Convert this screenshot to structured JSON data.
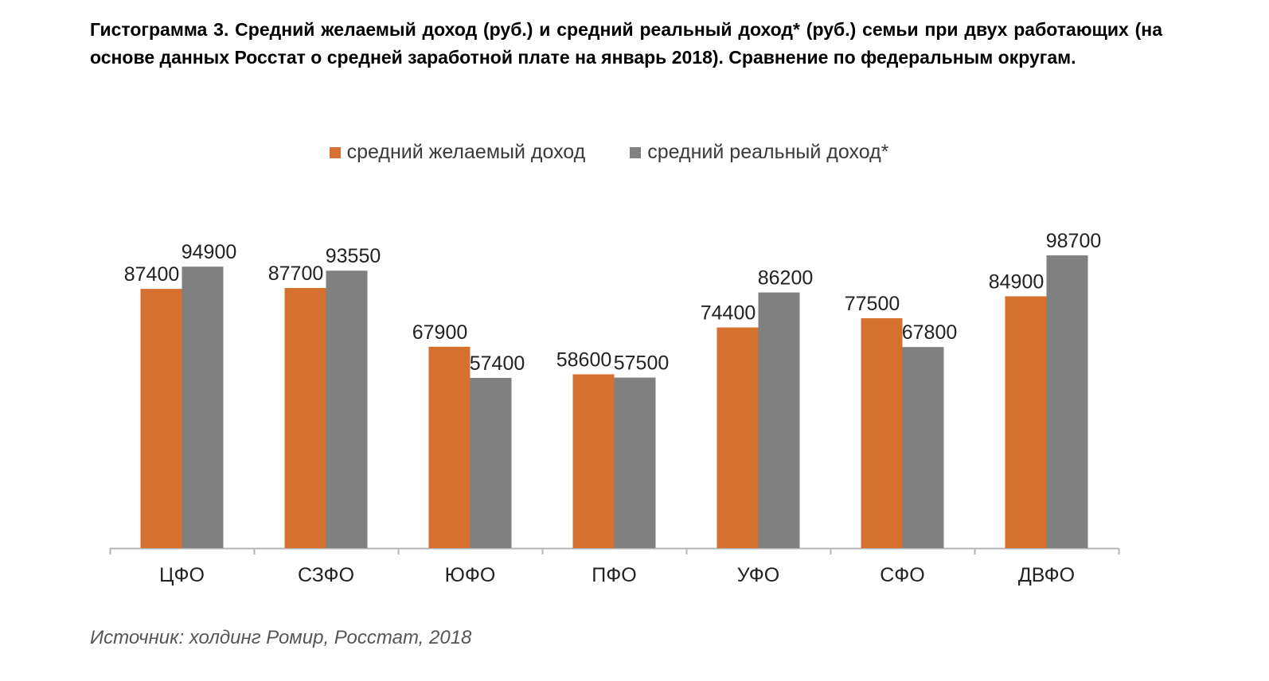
{
  "title": "Гистограмма 3. Средний желаемый доход (руб.) и средний реальный доход* (руб.) семьи при двух работающих (на основе данных Росстат о средней заработной плате на январь 2018). Сравнение по федеральным округам.",
  "source": "Источник: холдинг Ромир, Росстат, 2018",
  "colors": {
    "desired": "#d5702e",
    "real": "#808080",
    "axis": "#b5b5b5",
    "label": "#222222"
  },
  "chart_data": {
    "type": "bar",
    "title": "Гистограмма 3. Средний желаемый доход (руб.) и средний реальный доход* (руб.) семьи при двух работающих (на основе данных Росстат о средней заработной плате на январь 2018). Сравнение по федеральным округам.",
    "xlabel": "",
    "ylabel": "",
    "ylim": [
      0,
      100000
    ],
    "grid": false,
    "legend": "top-center",
    "categories": [
      "ЦФО",
      "СЗФО",
      "ЮФО",
      "ПФО",
      "УФО",
      "СФО",
      "ДВФО"
    ],
    "series": [
      {
        "name": "средний желаемый доход",
        "color": "#d5702e",
        "values": [
          87400,
          87700,
          67900,
          58600,
          74400,
          77500,
          84900
        ]
      },
      {
        "name": "средний реальный доход*",
        "color": "#808080",
        "values": [
          94900,
          93550,
          57400,
          57500,
          86200,
          67800,
          98700
        ]
      }
    ]
  }
}
